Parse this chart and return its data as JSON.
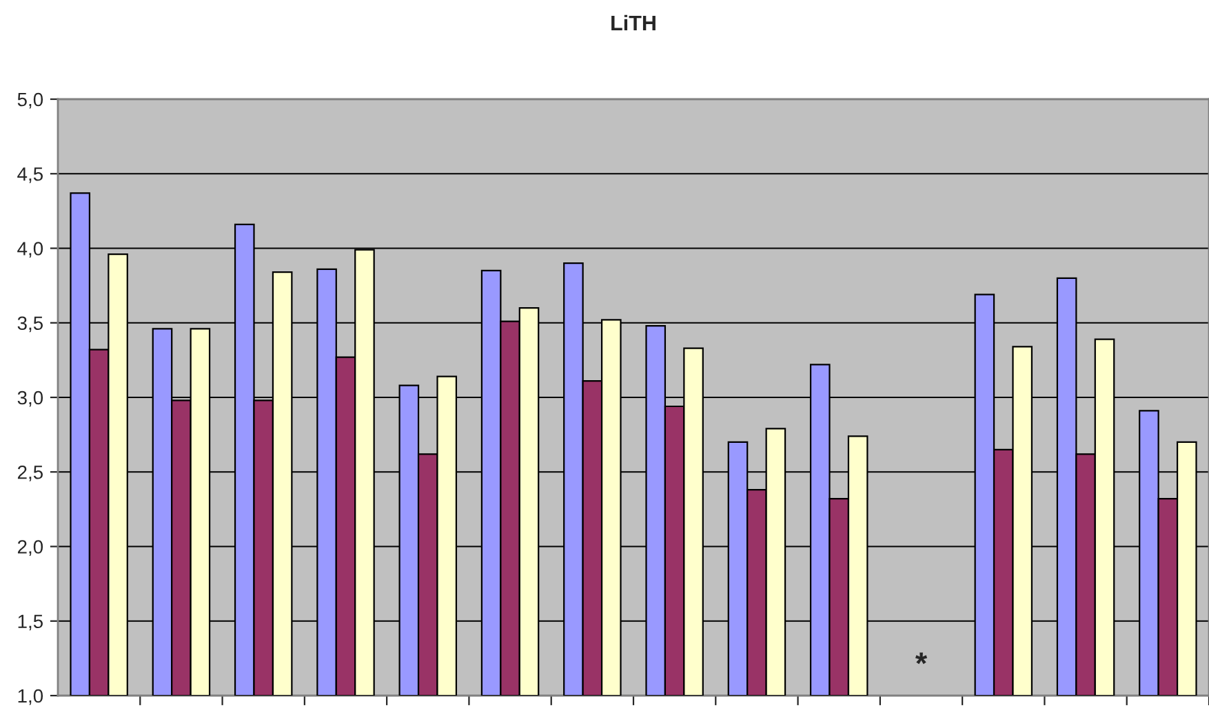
{
  "chart_data": {
    "type": "bar",
    "title": "LiTH",
    "categories": [
      null,
      null,
      null,
      null,
      null,
      null,
      null,
      null,
      null,
      null,
      null,
      null,
      null,
      null
    ],
    "series": [
      {
        "color": "#9999ff",
        "values": [
          4.37,
          3.46,
          4.16,
          3.86,
          3.08,
          3.85,
          3.9,
          3.48,
          2.7,
          3.22,
          null,
          3.69,
          3.8,
          2.91
        ]
      },
      {
        "color": "#993366",
        "values": [
          3.32,
          2.98,
          2.98,
          3.27,
          2.62,
          3.51,
          3.11,
          2.94,
          2.38,
          2.32,
          null,
          2.65,
          2.62,
          2.32
        ]
      },
      {
        "color": "#ffffcc",
        "values": [
          3.96,
          3.46,
          3.84,
          3.99,
          3.14,
          3.6,
          3.52,
          3.33,
          2.79,
          2.74,
          null,
          3.34,
          3.39,
          2.7
        ]
      }
    ],
    "ylim": [
      1.0,
      5.0
    ],
    "yticks": [
      {
        "value": 1.0,
        "label": "1,0"
      },
      {
        "value": 1.5,
        "label": "1,5"
      },
      {
        "value": 2.0,
        "label": "2,0"
      },
      {
        "value": 2.5,
        "label": "2,5"
      },
      {
        "value": 3.0,
        "label": "3,0"
      },
      {
        "value": 3.5,
        "label": "3,5"
      },
      {
        "value": 4.0,
        "label": "4,0"
      },
      {
        "value": 4.5,
        "label": "4,5"
      },
      {
        "value": 5.0,
        "label": "5,0"
      }
    ],
    "grid": "y",
    "annotations": [
      "*"
    ]
  }
}
